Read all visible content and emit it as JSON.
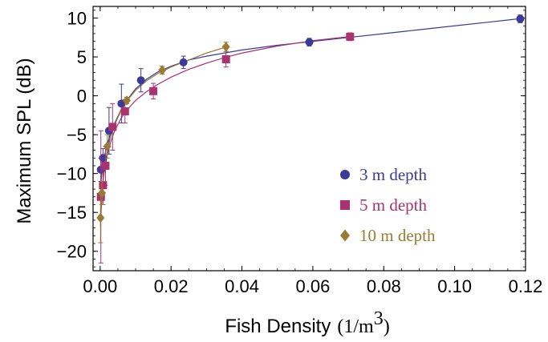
{
  "chart_data": {
    "type": "scatter",
    "xlabel": "Fish Density",
    "xunit": "(1/m",
    "xunit_sup": "3",
    "xunit_close": ")",
    "ylabel": "Maximum SPL (dB)",
    "xlim": [
      -0.002,
      0.12
    ],
    "ylim": [
      -22.5,
      11.5
    ],
    "x_ticks": [
      0.0,
      0.02,
      0.04,
      0.06,
      0.08,
      0.1,
      0.12
    ],
    "x_tick_labels": [
      "0.00",
      "0.02",
      "0.04",
      "0.06",
      "0.08",
      "0.10",
      "0.12"
    ],
    "y_ticks": [
      10,
      5,
      0,
      -5,
      -10,
      -15,
      -20
    ],
    "y_tick_labels": [
      "10",
      "5",
      "0",
      "−5",
      "−10",
      "−15",
      "−20"
    ],
    "grid": false,
    "legend_position": "lower-right",
    "series": [
      {
        "name": "3 m depth",
        "marker": "circle",
        "color": "#3b3a98",
        "points": [
          {
            "x": 0.0002,
            "y": -9.5,
            "err": 1.5
          },
          {
            "x": 0.0008,
            "y": -8.0,
            "err": 1.2
          },
          {
            "x": 0.0025,
            "y": -4.5,
            "err": 3.0
          },
          {
            "x": 0.006,
            "y": -1.0,
            "err": 2.5
          },
          {
            "x": 0.0115,
            "y": 2.0,
            "err": 1.5
          },
          {
            "x": 0.0235,
            "y": 4.3,
            "err": 0.8
          },
          {
            "x": 0.059,
            "y": 6.9,
            "err": 0.5
          },
          {
            "x": 0.1185,
            "y": 9.9,
            "err": 0.5
          }
        ],
        "fit": [
          [
            0.0001,
            -11.8
          ],
          [
            0.0005,
            -9.8
          ],
          [
            0.001,
            -8.2
          ],
          [
            0.002,
            -6.2
          ],
          [
            0.003,
            -4.8
          ],
          [
            0.004,
            -3.6
          ],
          [
            0.006,
            -1.7
          ],
          [
            0.008,
            -0.3
          ],
          [
            0.01,
            0.9
          ],
          [
            0.013,
            2.1
          ],
          [
            0.016,
            3.0
          ],
          [
            0.02,
            3.8
          ],
          [
            0.025,
            4.6
          ],
          [
            0.03,
            5.1
          ],
          [
            0.04,
            5.9
          ],
          [
            0.05,
            6.5
          ],
          [
            0.06,
            7.0
          ],
          [
            0.07,
            7.5
          ],
          [
            0.08,
            8.0
          ],
          [
            0.09,
            8.5
          ],
          [
            0.1,
            9.0
          ],
          [
            0.11,
            9.5
          ],
          [
            0.12,
            10.0
          ]
        ]
      },
      {
        "name": "5 m depth",
        "marker": "square",
        "color": "#a8336f",
        "points": [
          {
            "x": 0.0002,
            "y": -13.0,
            "err": 8.5
          },
          {
            "x": 0.0008,
            "y": -11.5,
            "err": 2.5
          },
          {
            "x": 0.0015,
            "y": -9.0,
            "err": 2.5
          },
          {
            "x": 0.0035,
            "y": -4.0,
            "err": 3.0
          },
          {
            "x": 0.007,
            "y": -2.0,
            "err": 1.5
          },
          {
            "x": 0.015,
            "y": 0.6,
            "err": 1.0
          },
          {
            "x": 0.0355,
            "y": 4.7,
            "err": 1.0
          },
          {
            "x": 0.0705,
            "y": 7.6,
            "err": 0.5
          }
        ],
        "fit": [
          [
            0.0001,
            -15.0
          ],
          [
            0.0005,
            -12.5
          ],
          [
            0.001,
            -10.3
          ],
          [
            0.002,
            -7.6
          ],
          [
            0.003,
            -5.9
          ],
          [
            0.004,
            -4.6
          ],
          [
            0.006,
            -2.8
          ],
          [
            0.008,
            -1.6
          ],
          [
            0.01,
            -0.6
          ],
          [
            0.013,
            0.5
          ],
          [
            0.016,
            1.4
          ],
          [
            0.02,
            2.4
          ],
          [
            0.025,
            3.4
          ],
          [
            0.03,
            4.2
          ],
          [
            0.035,
            4.9
          ],
          [
            0.04,
            5.5
          ],
          [
            0.05,
            6.4
          ],
          [
            0.06,
            7.1
          ],
          [
            0.07,
            7.6
          ]
        ]
      },
      {
        "name": "10 m depth",
        "marker": "diamond",
        "color": "#9a7b35",
        "points": [
          {
            "x": 0.0001,
            "y": -15.7,
            "err": 3.2
          },
          {
            "x": 0.0005,
            "y": -12.5,
            "err": 1.5
          },
          {
            "x": 0.002,
            "y": -6.5,
            "err": 1.5
          },
          {
            "x": 0.0075,
            "y": -0.6,
            "err": 0.4
          },
          {
            "x": 0.0175,
            "y": 3.3,
            "err": 0.5
          },
          {
            "x": 0.0355,
            "y": 6.3,
            "err": 0.6
          }
        ],
        "fit": [
          [
            0.0001,
            -16.8
          ],
          [
            0.0005,
            -12.8
          ],
          [
            0.001,
            -10.0
          ],
          [
            0.002,
            -7.0
          ],
          [
            0.003,
            -5.2
          ],
          [
            0.004,
            -3.8
          ],
          [
            0.006,
            -1.8
          ],
          [
            0.008,
            -0.4
          ],
          [
            0.01,
            0.7
          ],
          [
            0.013,
            1.9
          ],
          [
            0.016,
            2.8
          ],
          [
            0.02,
            3.7
          ],
          [
            0.025,
            4.6
          ],
          [
            0.03,
            5.5
          ],
          [
            0.035,
            6.2
          ]
        ]
      }
    ]
  }
}
